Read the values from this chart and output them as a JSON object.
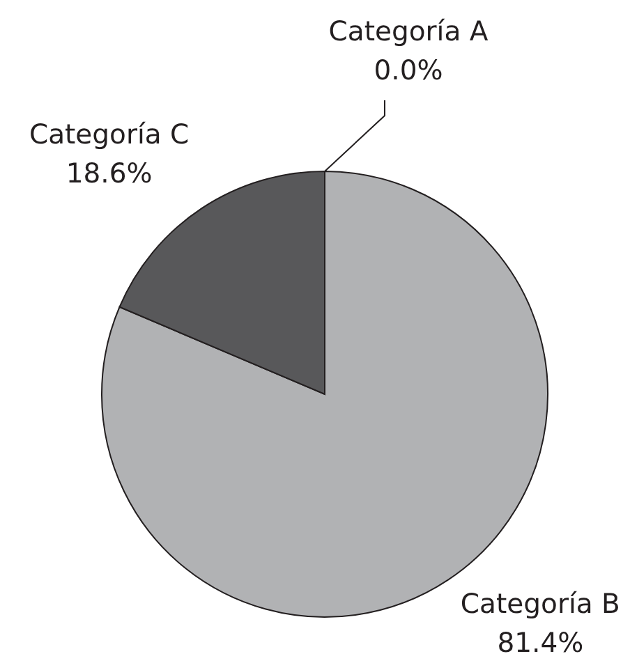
{
  "chart_data": {
    "type": "pie",
    "categories": [
      "Categoría A",
      "Categoría B",
      "Categoría C"
    ],
    "values": [
      0,
      81.4,
      18.6
    ],
    "colors": [
      "#b1b2b4",
      "#b1b2b4",
      "#58585a"
    ],
    "value_labels": [
      "0.0%",
      "81.4%",
      "18.6%"
    ]
  }
}
